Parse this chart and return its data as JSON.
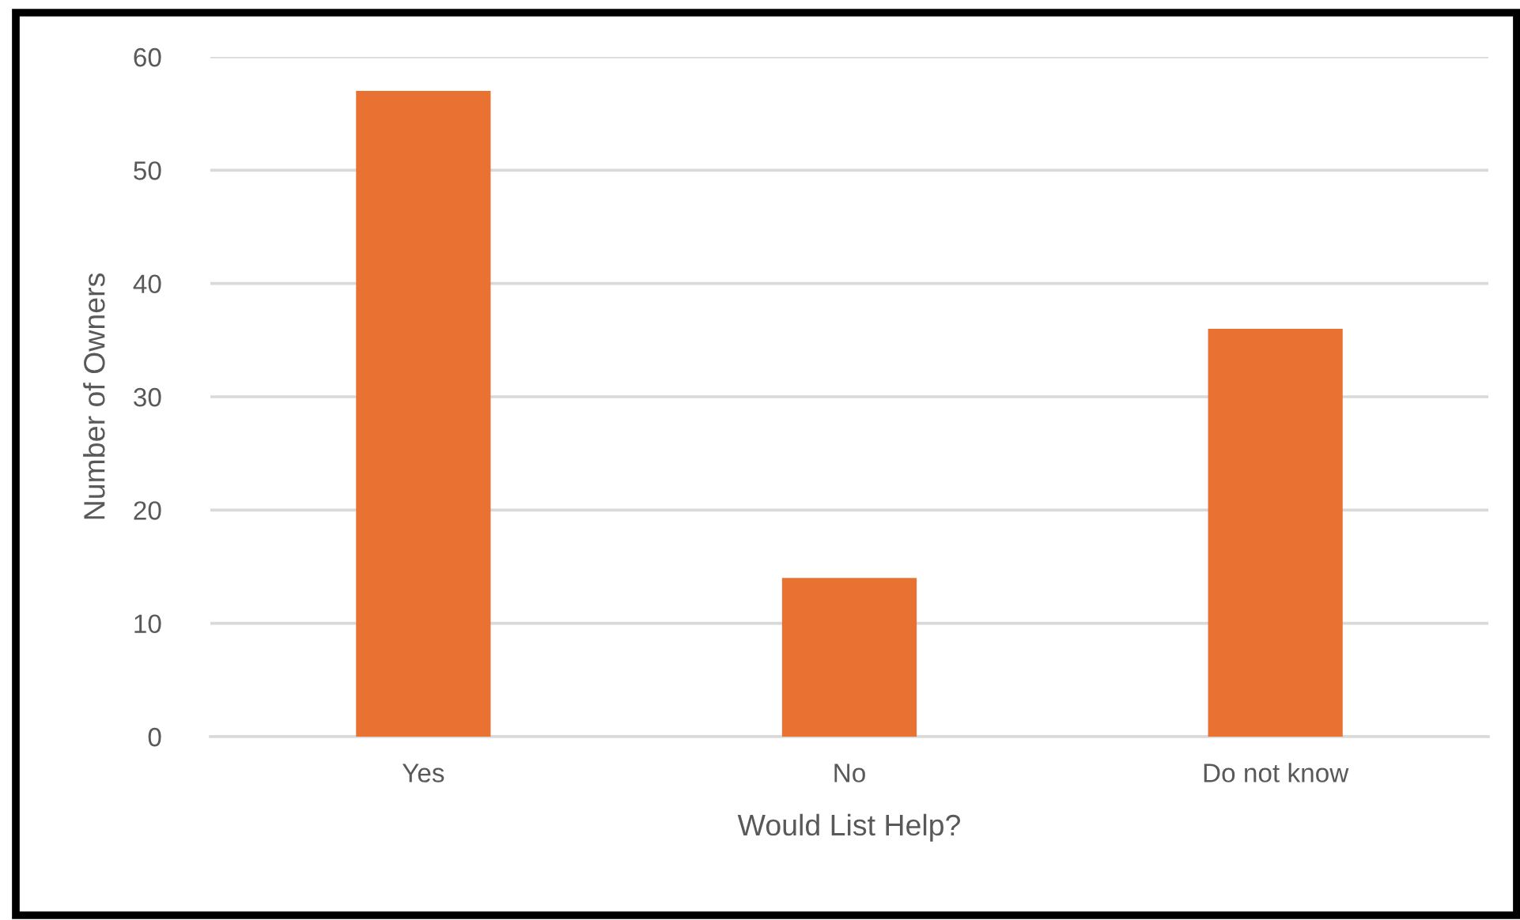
{
  "chart_data": {
    "type": "bar",
    "categories": [
      "Yes",
      "No",
      "Do not know"
    ],
    "values": [
      57,
      14,
      36
    ],
    "color": "#e97132",
    "xlabel": "Would List Help?",
    "ylabel": "Number of Owners",
    "ylim": [
      0,
      60
    ],
    "yticks": [
      0,
      10,
      20,
      30,
      40,
      50,
      60
    ],
    "grid": "y"
  }
}
